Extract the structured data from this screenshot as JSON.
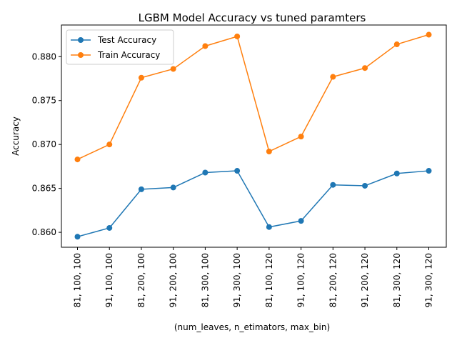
{
  "chart_data": {
    "type": "line",
    "title": "LGBM Model Accuracy vs tuned paramters",
    "xlabel": "(num_leaves, n_etimators, max_bin)",
    "ylabel": "Accuracy",
    "categories": [
      "81, 100, 100",
      "91, 100, 100",
      "81, 200, 100",
      "91, 200, 100",
      "81, 300, 100",
      "91, 300, 100",
      "81, 100, 120",
      "91, 100, 120",
      "81, 200, 120",
      "91, 200, 120",
      "81, 300, 120",
      "91, 300, 120"
    ],
    "series": [
      {
        "name": "Test Accuracy",
        "color": "#1f77b4",
        "values": [
          0.8595,
          0.8605,
          0.8649,
          0.8651,
          0.8668,
          0.867,
          0.8606,
          0.8613,
          0.8654,
          0.8653,
          0.8667,
          0.867
        ]
      },
      {
        "name": "Train Accuracy",
        "color": "#ff7f0e",
        "values": [
          0.8683,
          0.87,
          0.8776,
          0.8786,
          0.8812,
          0.8823,
          0.8692,
          0.8709,
          0.8777,
          0.8787,
          0.8814,
          0.8825
        ]
      }
    ],
    "yticks": [
      0.86,
      0.865,
      0.87,
      0.875,
      0.88
    ],
    "ytick_labels": [
      "0.860",
      "0.865",
      "0.870",
      "0.875",
      "0.880"
    ],
    "ylim": [
      0.8583,
      0.8836
    ],
    "legend": "top-left",
    "grid": false
  }
}
